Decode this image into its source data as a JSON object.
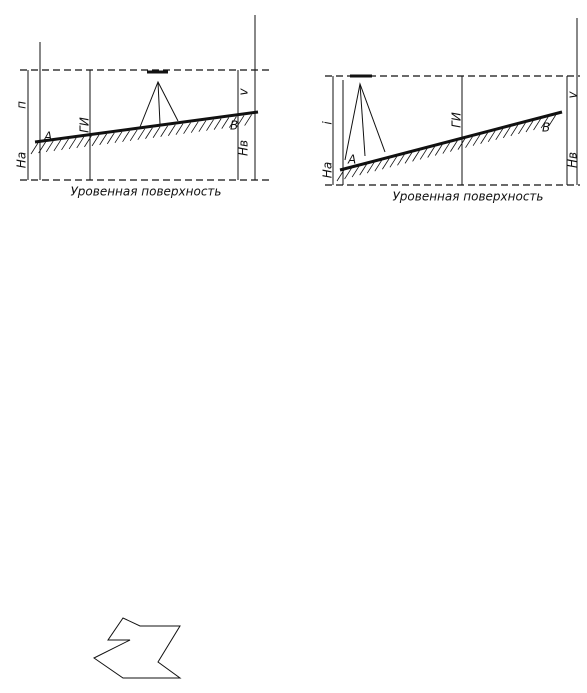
{
  "left": {
    "rod_a": "п",
    "hi": "ГИ",
    "rod_b": "v",
    "point_a": "A",
    "point_b": "B",
    "height_a": "Hа",
    "height_b": "Hв",
    "caption": "Уровенная поверхность"
  },
  "right": {
    "rod_a": "i",
    "hi": "ГИ",
    "rod_b": "v",
    "point_a": "A",
    "point_b": "B",
    "height_a": "Hа",
    "height_b": "Hв",
    "caption": "Уровенная поверхность"
  }
}
